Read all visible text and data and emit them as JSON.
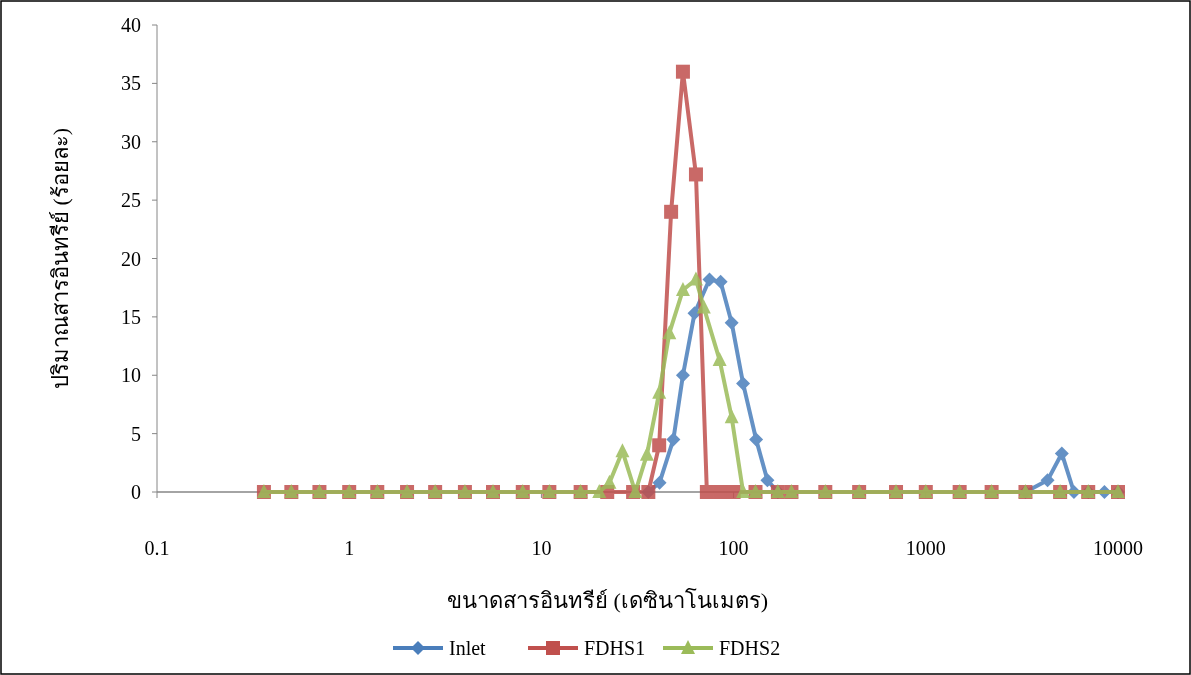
{
  "chart_data": {
    "type": "line",
    "xlabel": "ขนาดสารอินทรีย์ (เดซินาโนเมตร)",
    "ylabel": "ปริมาณสารอินทรีย์ (ร้อยละ)",
    "log": "x",
    "xlim": [
      0.1,
      10000
    ],
    "xticks": [
      0.1,
      1,
      10,
      100,
      1000,
      10000
    ],
    "ylim": [
      0,
      40
    ],
    "yticks": [
      0,
      5,
      10,
      15,
      20,
      25,
      30,
      35,
      40
    ],
    "legend": "bottom",
    "series": [
      {
        "name": "Inlet",
        "color": "#4a7ebb",
        "marker": "diamond",
        "x": [
          36,
          41.2,
          48.6,
          54.5,
          62.6,
          74.9,
          85.6,
          97.7,
          112,
          131,
          150,
          170,
          null,
          3300,
          4300,
          5100,
          5900,
          7000,
          8500,
          10000
        ],
        "values": [
          0,
          0.8,
          4.5,
          10,
          15.3,
          18.2,
          18,
          14.5,
          9.3,
          4.5,
          1,
          0,
          null,
          0,
          1,
          3.3,
          0,
          0,
          0,
          0
        ]
      },
      {
        "name": "FDHS1",
        "color": "#c0504d",
        "marker": "square",
        "x": [
          0.36,
          0.5,
          0.7,
          1,
          1.4,
          2,
          2.8,
          4,
          5.6,
          8,
          11,
          16,
          22,
          30,
          36,
          41,
          47.3,
          54.5,
          63.7,
          72.6,
          85,
          100,
          130,
          170,
          200,
          300,
          450,
          700,
          1000,
          1500,
          2200,
          3300,
          5000,
          7000,
          10000
        ],
        "values": [
          0,
          0,
          0,
          0,
          0,
          0,
          0,
          0,
          0,
          0,
          0,
          0,
          0,
          0,
          0,
          4,
          24,
          36,
          27.2,
          0,
          0,
          0,
          0,
          0,
          0,
          0,
          0,
          0,
          0,
          0,
          0,
          0,
          0,
          0,
          0
        ]
      },
      {
        "name": "FDHS2",
        "color": "#9bbb59",
        "marker": "triangle",
        "x": [
          0.36,
          0.5,
          0.7,
          1,
          1.4,
          2,
          2.8,
          4,
          5.6,
          8,
          11,
          16,
          20,
          22.6,
          26.4,
          30.8,
          35.4,
          41,
          46.3,
          54.5,
          63.7,
          70,
          84.6,
          97.7,
          112,
          130,
          170,
          200,
          300,
          450,
          700,
          1000,
          1500,
          2200,
          3300,
          5000,
          7000,
          10000
        ],
        "values": [
          0,
          0,
          0,
          0,
          0,
          0,
          0,
          0,
          0,
          0,
          0,
          0,
          0,
          0.8,
          3.5,
          0,
          3.2,
          8.5,
          13.6,
          17.3,
          18.2,
          15.8,
          11.3,
          6.4,
          0,
          0,
          0,
          0,
          0,
          0,
          0,
          0,
          0,
          0,
          0,
          0,
          0,
          0
        ]
      }
    ]
  }
}
